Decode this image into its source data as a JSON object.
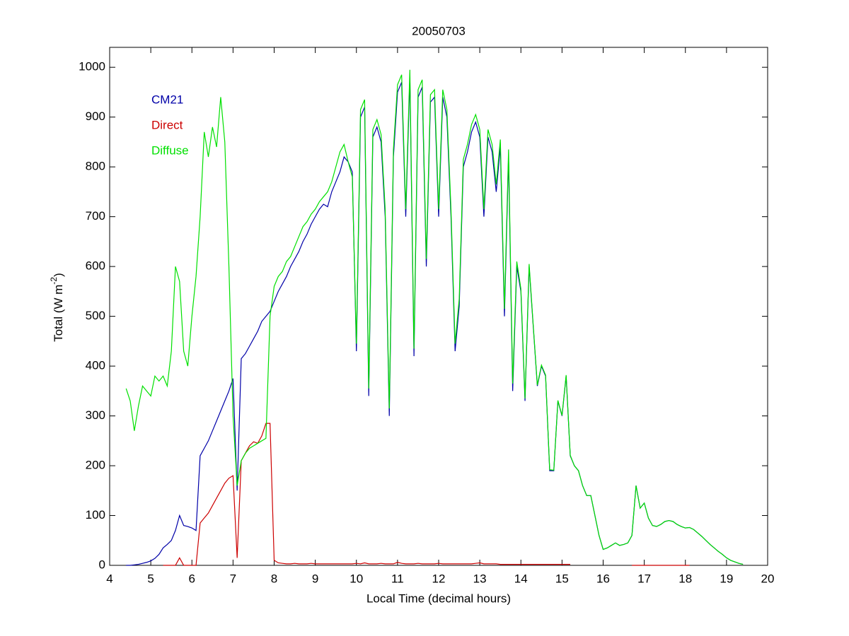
{
  "chart_data": {
    "type": "line",
    "title": "20050703",
    "xlabel": "Local Time (decimal hours)",
    "ylabel": {
      "text": "Total (W m",
      "sup": "-2",
      "end": ")"
    },
    "xlim": [
      4,
      20
    ],
    "xticks": [
      4,
      5,
      6,
      7,
      8,
      9,
      10,
      11,
      12,
      13,
      14,
      15,
      16,
      17,
      18,
      19,
      20
    ],
    "ylim": [
      0,
      1040
    ],
    "yticks": [
      0,
      100,
      200,
      300,
      400,
      500,
      600,
      700,
      800,
      900,
      1000
    ],
    "legend": "upper left",
    "x": [
      4.4,
      4.5,
      4.6,
      4.7,
      4.8,
      4.9,
      5.0,
      5.1,
      5.2,
      5.3,
      5.4,
      5.5,
      5.6,
      5.7,
      5.8,
      5.9,
      6.0,
      6.1,
      6.2,
      6.3,
      6.4,
      6.5,
      6.6,
      6.7,
      6.8,
      6.9,
      7.0,
      7.1,
      7.2,
      7.3,
      7.4,
      7.5,
      7.6,
      7.7,
      7.8,
      7.9,
      8.0,
      8.1,
      8.2,
      8.3,
      8.4,
      8.5,
      8.6,
      8.7,
      8.8,
      8.9,
      9.0,
      9.1,
      9.2,
      9.3,
      9.4,
      9.5,
      9.6,
      9.7,
      9.8,
      9.9,
      10.0,
      10.1,
      10.2,
      10.3,
      10.4,
      10.5,
      10.6,
      10.7,
      10.8,
      10.9,
      11.0,
      11.1,
      11.2,
      11.3,
      11.4,
      11.5,
      11.6,
      11.7,
      11.8,
      11.9,
      12.0,
      12.1,
      12.2,
      12.3,
      12.4,
      12.5,
      12.6,
      12.7,
      12.8,
      12.9,
      13.0,
      13.1,
      13.2,
      13.3,
      13.4,
      13.5,
      13.6,
      13.7,
      13.8,
      13.9,
      14.0,
      14.1,
      14.2,
      14.3,
      14.4,
      14.5,
      14.6,
      14.7,
      14.8,
      14.9,
      15.0,
      15.1,
      15.2,
      15.3,
      15.4,
      15.5,
      15.6,
      15.7,
      15.8,
      15.9,
      16.0,
      16.1,
      16.2,
      16.3,
      16.4,
      16.5,
      16.6,
      16.7,
      16.8,
      16.9,
      17.0,
      17.1,
      17.2,
      17.3,
      17.4,
      17.5,
      17.6,
      17.7,
      17.8,
      17.9,
      18.0,
      18.1,
      18.2,
      18.3,
      18.4,
      18.5,
      18.6,
      18.7,
      18.8,
      18.9,
      19.0,
      19.1,
      19.2,
      19.3,
      19.4
    ],
    "series": [
      {
        "name": "CM21",
        "color": "#0000a8",
        "values": [
          0,
          0,
          1,
          2,
          4,
          6,
          9,
          14,
          22,
          35,
          42,
          50,
          70,
          100,
          80,
          78,
          75,
          70,
          220,
          235,
          250,
          270,
          290,
          310,
          330,
          350,
          375,
          150,
          415,
          425,
          440,
          455,
          470,
          490,
          500,
          510,
          530,
          550,
          565,
          580,
          600,
          615,
          630,
          650,
          665,
          685,
          700,
          715,
          725,
          720,
          750,
          770,
          790,
          820,
          810,
          790,
          430,
          900,
          920,
          340,
          860,
          880,
          850,
          700,
          300,
          820,
          950,
          970,
          700,
          980,
          420,
          940,
          960,
          600,
          930,
          940,
          700,
          940,
          900,
          700,
          430,
          520,
          800,
          830,
          870,
          890,
          860,
          700,
          860,
          830,
          750,
          840,
          500,
          820,
          350,
          600,
          550,
          330,
          600,
          480,
          360,
          400,
          380,
          190,
          190,
          330,
          300,
          380,
          220,
          200,
          190,
          160,
          140,
          140,
          100,
          60,
          32,
          35,
          40,
          45,
          40,
          42,
          45,
          60,
          160,
          115,
          125,
          95,
          80,
          78,
          82,
          88,
          90,
          88,
          82,
          78,
          75,
          76,
          72,
          65,
          58,
          50,
          42,
          35,
          28,
          22,
          15,
          10,
          7,
          4,
          2
        ]
      },
      {
        "name": "Direct",
        "color": "#cc0000",
        "values": [
          null,
          null,
          null,
          null,
          null,
          null,
          null,
          null,
          null,
          0,
          0,
          0,
          0,
          15,
          0,
          0,
          0,
          0,
          85,
          95,
          105,
          120,
          135,
          150,
          165,
          175,
          180,
          15,
          210,
          225,
          240,
          248,
          245,
          260,
          285,
          285,
          10,
          5,
          4,
          3,
          3,
          4,
          3,
          3,
          3,
          4,
          3,
          3,
          3,
          3,
          3,
          3,
          3,
          3,
          3,
          3,
          4,
          3,
          5,
          3,
          3,
          3,
          4,
          3,
          3,
          3,
          6,
          4,
          3,
          3,
          3,
          4,
          3,
          3,
          3,
          3,
          4,
          3,
          3,
          3,
          3,
          3,
          3,
          3,
          3,
          4,
          5,
          3,
          3,
          3,
          3,
          2,
          2,
          2,
          2,
          2,
          2,
          2,
          2,
          2,
          2,
          2,
          2,
          2,
          2,
          2,
          2,
          2,
          2,
          null,
          null,
          null,
          null,
          null,
          null,
          null,
          null,
          null,
          null,
          null,
          null,
          null,
          null,
          0,
          0,
          0,
          0,
          0,
          0,
          0,
          0,
          0,
          0,
          0,
          0,
          0,
          0,
          0,
          null,
          null,
          null,
          null,
          null,
          null,
          null,
          null,
          null,
          null,
          null,
          null,
          null
        ]
      },
      {
        "name": "Diffuse",
        "color": "#00e000",
        "values": [
          355,
          330,
          270,
          320,
          360,
          350,
          340,
          380,
          370,
          380,
          360,
          430,
          600,
          570,
          430,
          400,
          500,
          580,
          700,
          870,
          820,
          880,
          840,
          940,
          850,
          600,
          300,
          160,
          210,
          225,
          235,
          240,
          245,
          250,
          255,
          500,
          560,
          580,
          590,
          610,
          620,
          640,
          660,
          680,
          690,
          705,
          715,
          730,
          740,
          750,
          770,
          800,
          830,
          845,
          810,
          780,
          445,
          915,
          935,
          355,
          875,
          895,
          865,
          715,
          315,
          835,
          965,
          985,
          715,
          995,
          435,
          955,
          975,
          615,
          945,
          955,
          715,
          955,
          915,
          715,
          445,
          535,
          815,
          845,
          885,
          905,
          875,
          715,
          875,
          845,
          765,
          855,
          515,
          835,
          365,
          610,
          555,
          335,
          605,
          482,
          362,
          402,
          382,
          192,
          191,
          331,
          301,
          382,
          221,
          200,
          190,
          160,
          140,
          140,
          100,
          60,
          32,
          35,
          40,
          45,
          40,
          42,
          45,
          60,
          160,
          115,
          125,
          95,
          80,
          78,
          82,
          88,
          90,
          88,
          82,
          78,
          75,
          76,
          72,
          65,
          58,
          50,
          42,
          35,
          28,
          22,
          15,
          10,
          7,
          4,
          2
        ]
      }
    ]
  }
}
